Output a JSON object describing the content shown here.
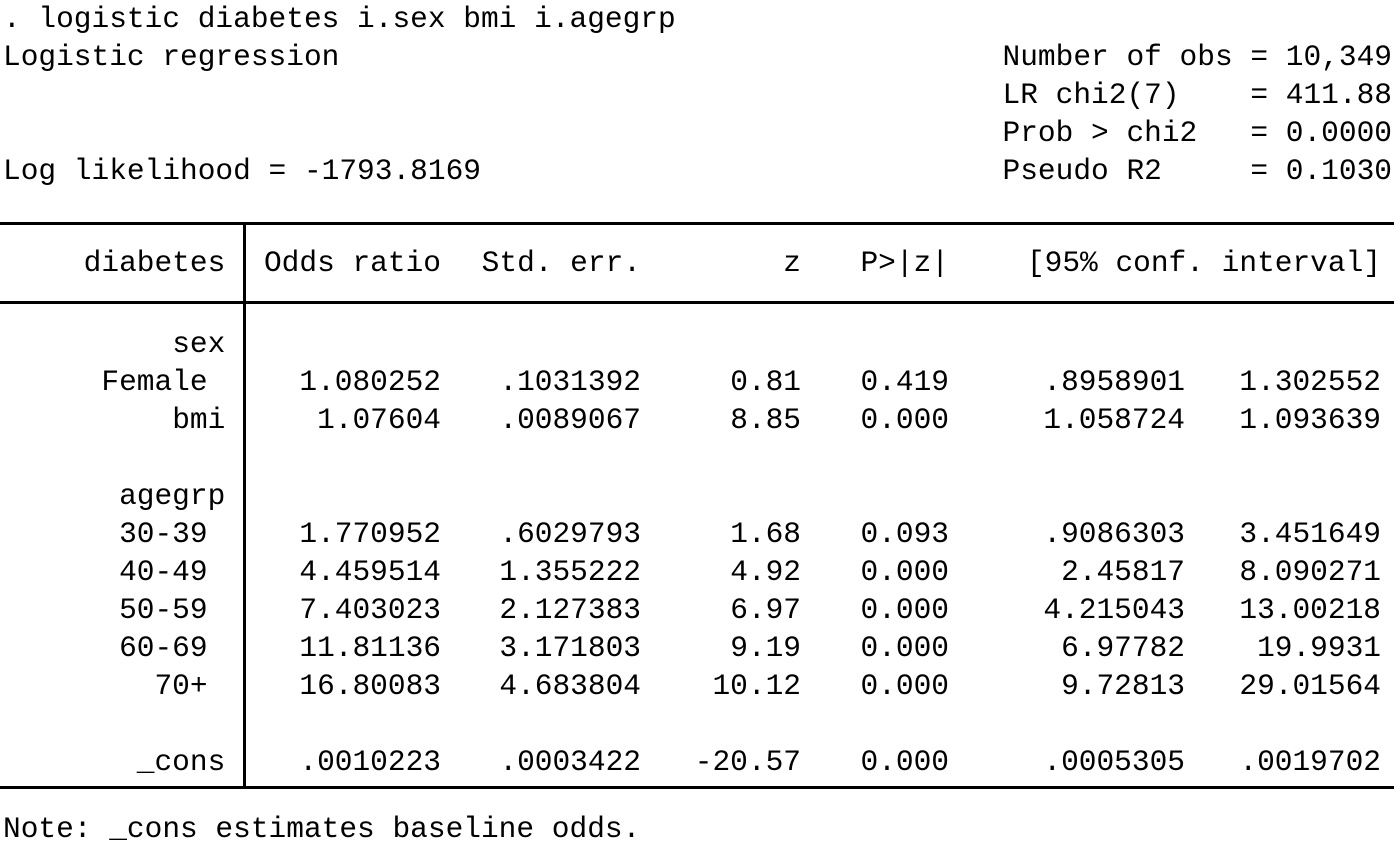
{
  "colors": {
    "text": "#000000",
    "background": "#ffffff",
    "rule": "#000000"
  },
  "header": {
    "command": ". logistic diabetes i.sex bmi i.agegrp",
    "model_title": "Logistic regression",
    "log_likelihood": "-1793.8169",
    "stats": {
      "number_of_obs": "10,349",
      "lr_chi2_7": "411.88",
      "prob_gt_chi2": "0.0000",
      "pseudo_r2": "0.1030"
    },
    "top_lines": [
      {
        "left": ". logistic diabetes i.sex bmi i.agegrp",
        "right": ""
      },
      {
        "left": "Logistic regression",
        "right": "Number of obs = 10,349"
      },
      {
        "left": "",
        "right": "LR chi2(7)    = 411.88"
      },
      {
        "left": "",
        "right": "Prob > chi2   = 0.0000"
      },
      {
        "left": "Log likelihood = -1793.8169",
        "right": "Pseudo R2     = 0.1030"
      }
    ]
  },
  "table": {
    "depvar": "diabetes ",
    "columns": [
      "Odds ratio",
      "Std. err.",
      "z",
      "P>|z|",
      "[95% conf. interval]"
    ],
    "rows": [
      {
        "label": "sex ",
        "cells": [
          "",
          "",
          "",
          "",
          "",
          ""
        ]
      },
      {
        "label": "Female  ",
        "cells": [
          "1.080252",
          ".1031392",
          "0.81",
          "0.419",
          ".8958901",
          "1.302552"
        ]
      },
      {
        "label": "bmi ",
        "cells": [
          "1.07604",
          ".0089067",
          "8.85",
          "0.000",
          "1.058724",
          "1.093639"
        ]
      },
      {
        "label": "",
        "cells": [
          "",
          "",
          "",
          "",
          "",
          ""
        ]
      },
      {
        "label": "agegrp ",
        "cells": [
          "",
          "",
          "",
          "",
          "",
          ""
        ]
      },
      {
        "label": "30-39  ",
        "cells": [
          "1.770952",
          ".6029793",
          "1.68",
          "0.093",
          ".9086303",
          "3.451649"
        ]
      },
      {
        "label": "40-49  ",
        "cells": [
          "4.459514",
          "1.355222",
          "4.92",
          "0.000",
          "2.45817",
          "8.090271"
        ]
      },
      {
        "label": "50-59  ",
        "cells": [
          "7.403023",
          "2.127383",
          "6.97",
          "0.000",
          "4.215043",
          "13.00218"
        ]
      },
      {
        "label": "60-69  ",
        "cells": [
          "11.81136",
          "3.171803",
          "9.19",
          "0.000",
          "6.97782",
          "19.9931"
        ]
      },
      {
        "label": "70+  ",
        "cells": [
          "16.80083",
          "4.683804",
          "10.12",
          "0.000",
          "9.72813",
          "29.01564"
        ]
      },
      {
        "label": "",
        "cells": [
          "",
          "",
          "",
          "",
          "",
          ""
        ]
      },
      {
        "label": "_cons ",
        "cells": [
          ".0010223",
          ".0003422",
          "-20.57",
          "0.000",
          ".0005305",
          ".0019702"
        ]
      }
    ]
  },
  "note": "Note: _cons estimates baseline odds."
}
